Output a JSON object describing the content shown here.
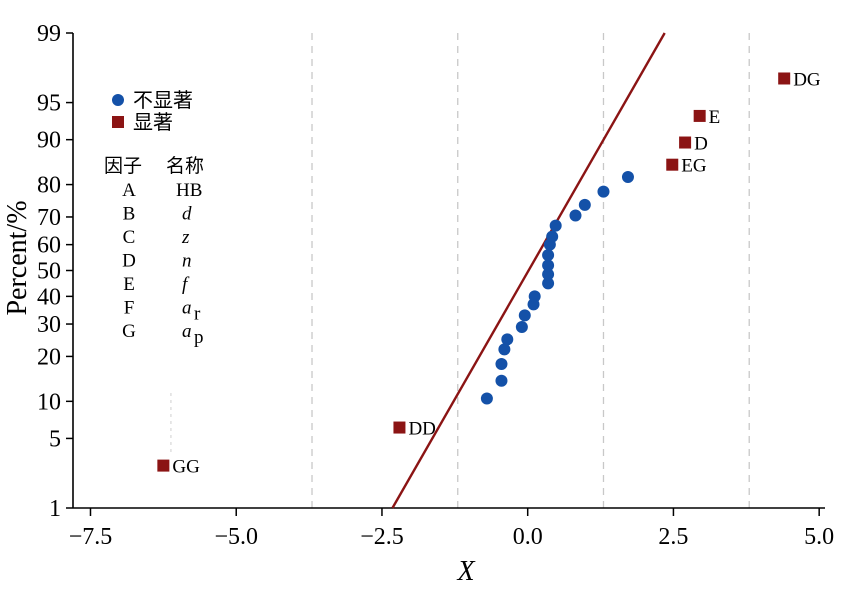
{
  "chart_data": {
    "type": "scatter",
    "title": "",
    "xlabel": "X",
    "ylabel": "Percent/%",
    "xlim": [
      -7.8,
      5.1
    ],
    "ylim": [
      1,
      99
    ],
    "y_scale": "normal-probability",
    "x_ticks": [
      -7.5,
      -5.0,
      -2.5,
      0.0,
      2.5,
      5.0
    ],
    "x_tick_labels": [
      "−7.5",
      "−5.0",
      "−2.5",
      "0.0",
      "2.5",
      "5.0"
    ],
    "y_ticks": [
      1,
      5,
      10,
      20,
      30,
      40,
      50,
      60,
      70,
      80,
      90,
      95,
      99
    ],
    "y_tick_labels": [
      "1",
      "5",
      "10",
      "20",
      "30",
      "40",
      "50",
      "60",
      "70",
      "80",
      "90",
      "95",
      "99"
    ],
    "vertical_dashed_lines_x": [
      -3.7,
      -1.2,
      1.3,
      3.8
    ],
    "series": [
      {
        "name": "不显著",
        "color": "#1451a8",
        "marker": "circle",
        "points": [
          {
            "x": -0.7,
            "y": 10.5
          },
          {
            "x": -0.45,
            "y": 14
          },
          {
            "x": -0.45,
            "y": 18
          },
          {
            "x": -0.4,
            "y": 22
          },
          {
            "x": -0.35,
            "y": 25
          },
          {
            "x": -0.1,
            "y": 29
          },
          {
            "x": -0.05,
            "y": 33
          },
          {
            "x": 0.1,
            "y": 37
          },
          {
            "x": 0.12,
            "y": 40
          },
          {
            "x": 0.35,
            "y": 45
          },
          {
            "x": 0.35,
            "y": 48.5
          },
          {
            "x": 0.35,
            "y": 52
          },
          {
            "x": 0.35,
            "y": 56
          },
          {
            "x": 0.38,
            "y": 60
          },
          {
            "x": 0.42,
            "y": 63
          },
          {
            "x": 0.48,
            "y": 67
          },
          {
            "x": 0.82,
            "y": 70.5
          },
          {
            "x": 0.98,
            "y": 74
          },
          {
            "x": 1.3,
            "y": 78
          },
          {
            "x": 1.72,
            "y": 82
          }
        ]
      },
      {
        "name": "显著",
        "color": "#8b1414",
        "marker": "square",
        "points": [
          {
            "x": -6.25,
            "y": 2.8,
            "label": "GG"
          },
          {
            "x": -2.2,
            "y": 6.2,
            "label": "DD"
          },
          {
            "x": 2.48,
            "y": 85,
            "label": "EG"
          },
          {
            "x": 2.7,
            "y": 89.5,
            "label": "D"
          },
          {
            "x": 2.95,
            "y": 93.5,
            "label": "E"
          },
          {
            "x": 4.4,
            "y": 97,
            "label": "DG"
          }
        ]
      }
    ],
    "reference_line": {
      "color": "#8b1414",
      "from": {
        "x": -2.32,
        "y": 1
      },
      "to": {
        "x": 2.35,
        "y": 99
      }
    },
    "legend": {
      "placement": "top-left",
      "items": [
        {
          "label": "不显著",
          "color": "#1451a8",
          "marker": "circle"
        },
        {
          "label": "显著",
          "color": "#8b1414",
          "marker": "square"
        }
      ]
    },
    "factor_table": {
      "headers": [
        "因子",
        "名称"
      ],
      "rows": [
        {
          "factor": "A",
          "name": "HB",
          "sub": ""
        },
        {
          "factor": "B",
          "name": "d",
          "sub": ""
        },
        {
          "factor": "C",
          "name": "z",
          "sub": ""
        },
        {
          "factor": "D",
          "name": "n",
          "sub": ""
        },
        {
          "factor": "E",
          "name": "f",
          "sub": ""
        },
        {
          "factor": "F",
          "name": "a",
          "sub": "r"
        },
        {
          "factor": "G",
          "name": "a",
          "sub": "p"
        }
      ]
    }
  }
}
